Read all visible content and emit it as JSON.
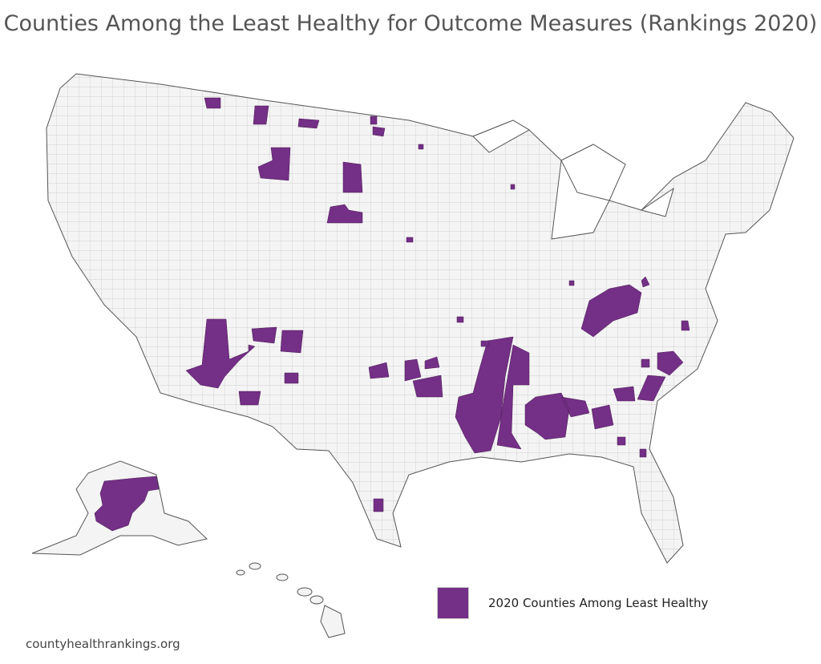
{
  "title": "Counties Among the Least Healthy for Outcome Measures (Rankings 2020)",
  "legend": {
    "label": "2020 Counties Among Least Healthy",
    "color": "#742f86"
  },
  "source": "countyhealthrankings.org",
  "colors": {
    "land": "#f4f4f4",
    "border": "#555555",
    "county_lines": "#bdbdbd",
    "highlight": "#742f86"
  }
}
